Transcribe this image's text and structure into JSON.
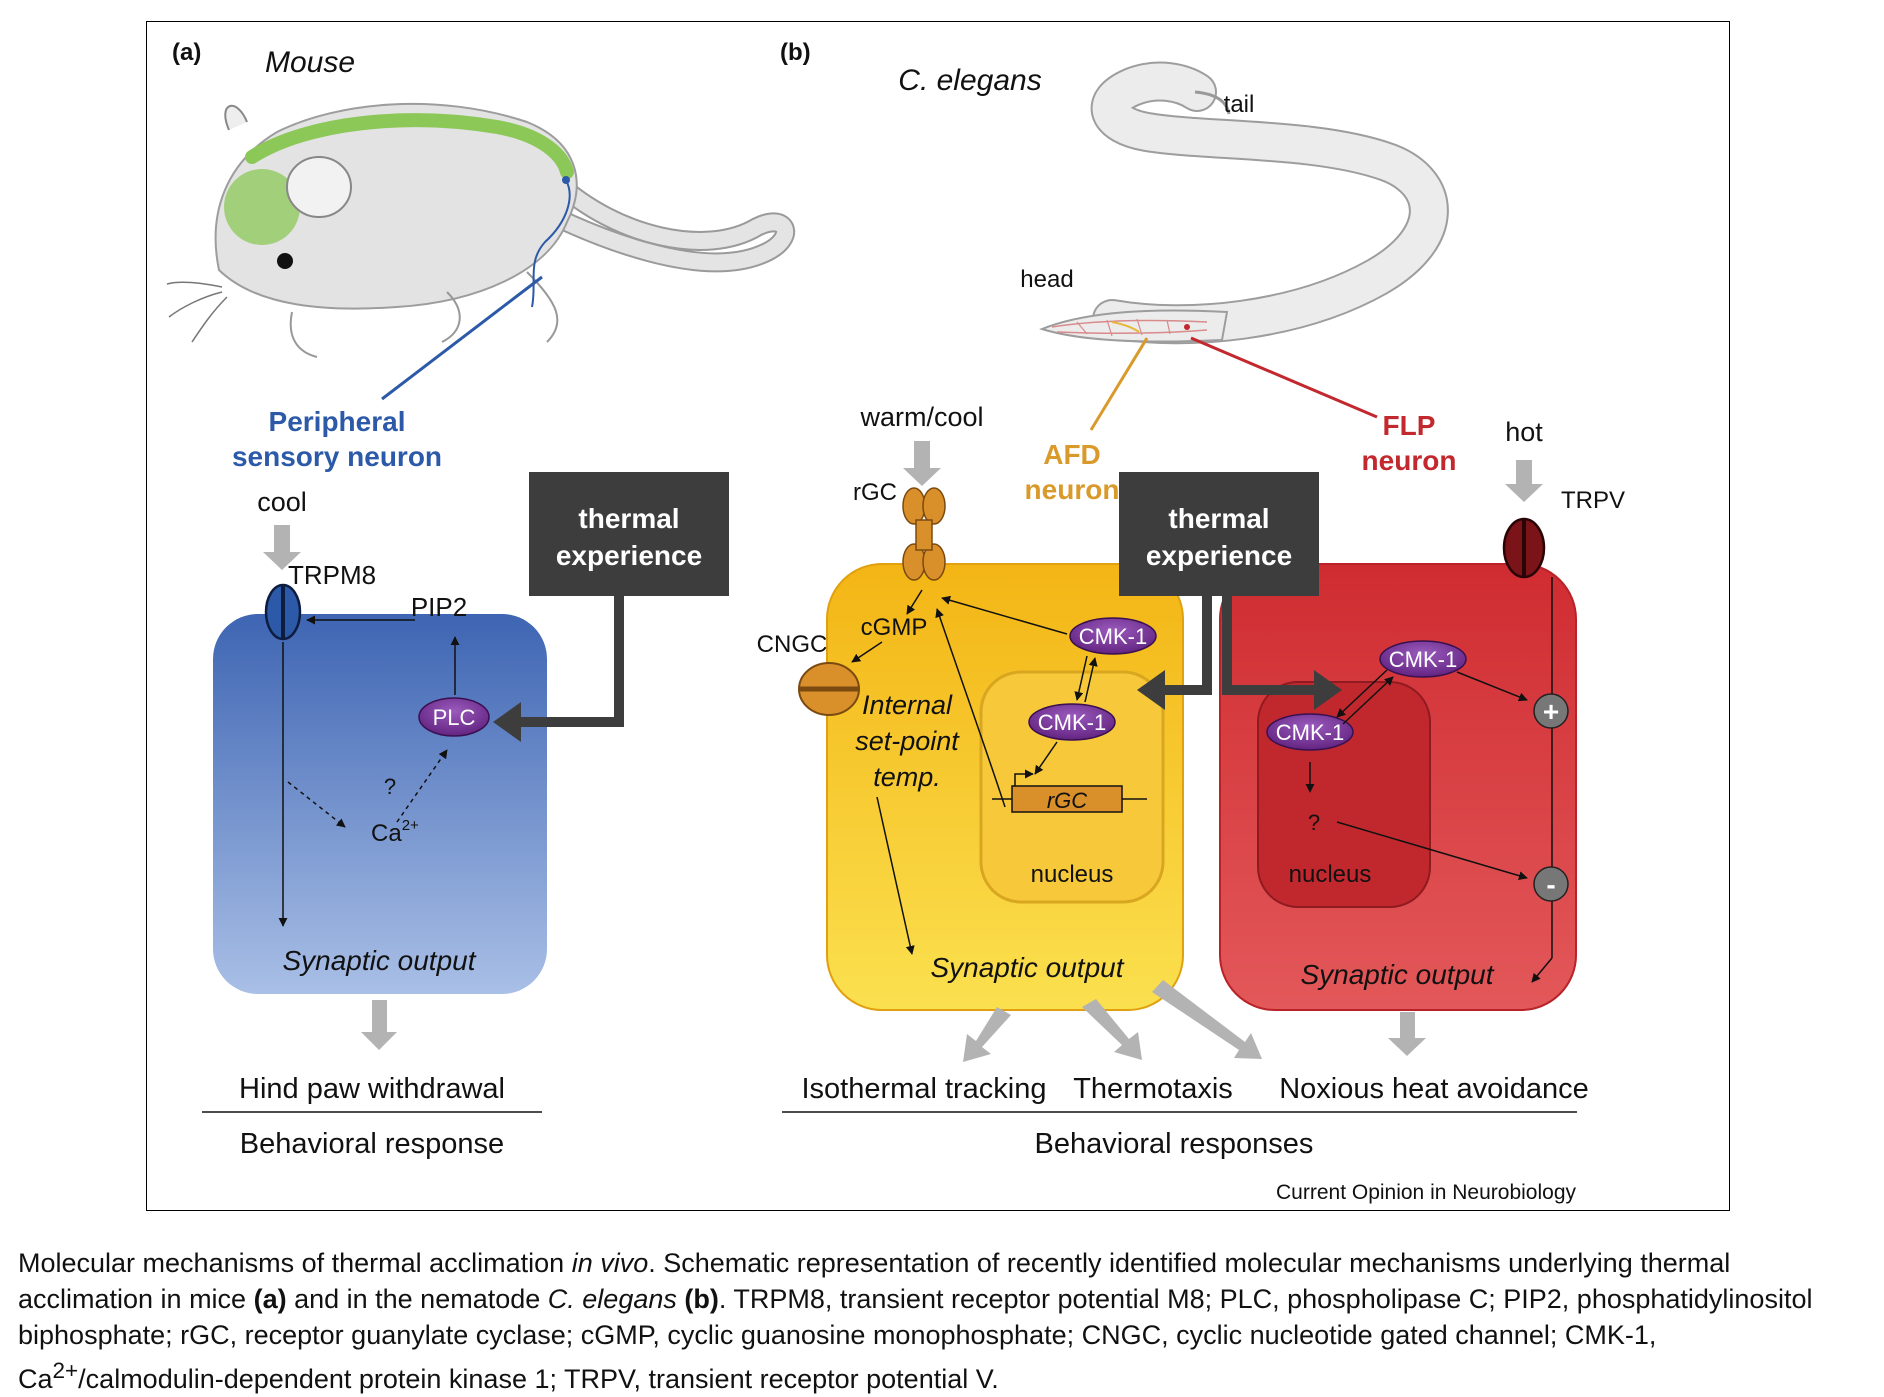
{
  "panel_a": {
    "label": "(a)",
    "organism": "Mouse",
    "neuron_label_line1": "Peripheral",
    "neuron_label_line2": "sensory neuron",
    "stimulus": "cool",
    "channel": "TRPM8",
    "lipid": "PIP2",
    "enzyme": "PLC",
    "unknown": "?",
    "ion": "Ca",
    "ion_charge": "2+",
    "experience_line1": "thermal",
    "experience_line2": "experience",
    "output": "Synaptic output",
    "behavior": "Hind paw withdrawal",
    "response_label": "Behavioral response"
  },
  "panel_b": {
    "label": "(b)",
    "organism": "C. elegans",
    "tail": "tail",
    "head": "head",
    "afd_line1": "AFD",
    "afd_line2": "neuron",
    "flp_line1": "FLP",
    "flp_line2": "neuron",
    "warm_stimulus": "warm/cool",
    "rgc": "rGC",
    "cgmp": "cGMP",
    "cngc": "CNGC",
    "cmk1": "CMK-1",
    "setpoint_line1": "Internal",
    "setpoint_line2": "set-point",
    "setpoint_line3": "temp.",
    "rgc_gene": "rGC",
    "nucleus": "nucleus",
    "experience_line1": "thermal",
    "experience_line2": "experience",
    "hot_stimulus": "hot",
    "trpv": "TRPV",
    "plus": "+",
    "minus": "-",
    "unknown": "?",
    "output_yellow": "Synaptic output",
    "output_red": "Synaptic output",
    "behavior1": "Isothermal tracking",
    "behavior2": "Thermotaxis",
    "behavior3": "Noxious heat avoidance",
    "response_label": "Behavioral responses"
  },
  "credit": "Current Opinion in Neurobiology",
  "caption": {
    "title_pre": "Molecular mechanisms of thermal acclimation ",
    "title_italic": "in vivo",
    "sentence_a": ". Schematic representation of recently identified molecular mechanisms underlying thermal acclimation in mice ",
    "ref_a": "(a)",
    "mid": " and in the nematode ",
    "species": "C. elegans",
    "ref_b": "(b)",
    "rest1": ". TRPM8, transient receptor potential M8; PLC, phospholipase C; PIP2, phosphatidylinositol biphosphate; rGC, receptor guanylate cyclase; cGMP, cyclic guanosine monophosphate; CNGC, cyclic nucleotide gated channel; CMK-1, Ca",
    "sup": "2+",
    "rest2": "/calmodulin-dependent protein kinase 1; TRPV, transient receptor potential V."
  },
  "colors": {
    "blue_cell": "#5b7fc2",
    "yellow_cell": "#f5c51d",
    "red_cell": "#d8353a",
    "kinase": "#6b2a8a",
    "neuron_blue": "#2c5aa8",
    "afd_orange": "#d99a2b",
    "flp_red": "#c2282d",
    "dark_box": "#3d3d3d"
  }
}
